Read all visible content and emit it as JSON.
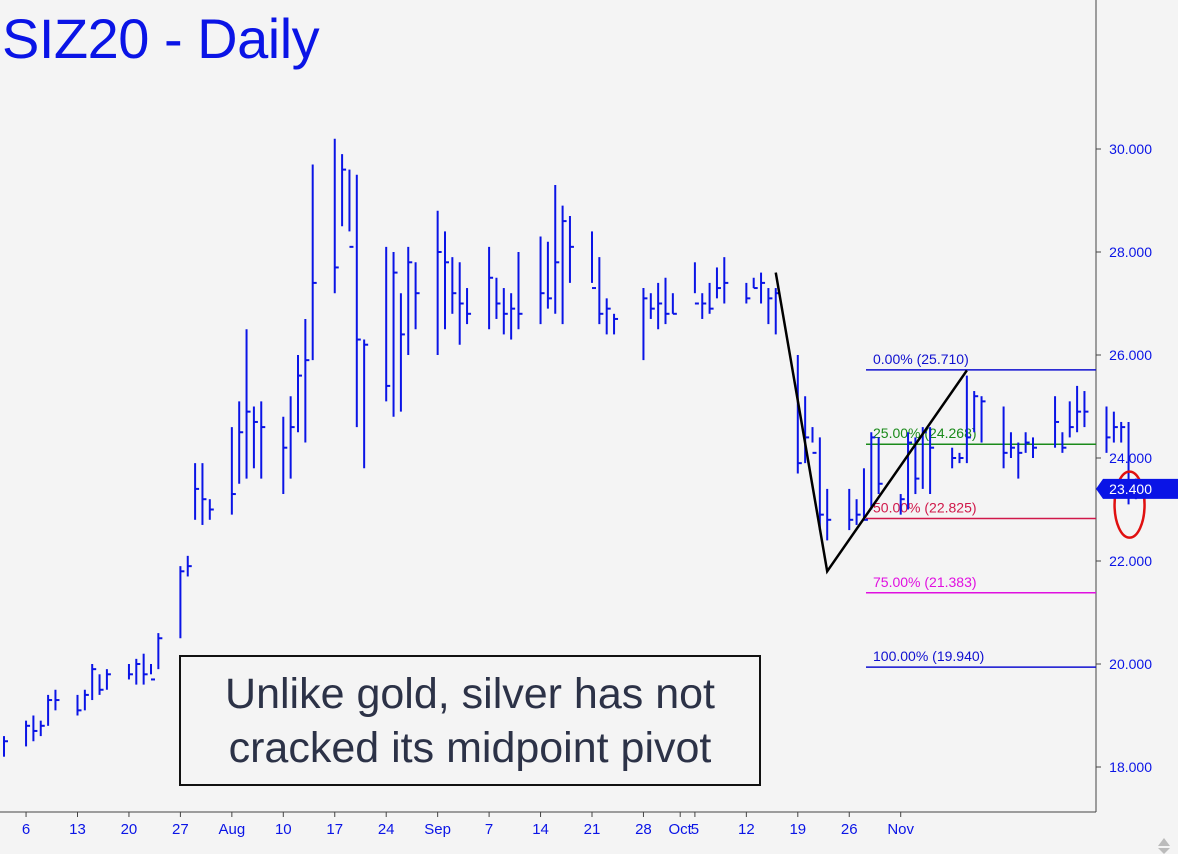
{
  "title": "SIZ20 - Daily",
  "annotation": {
    "line1": "Unlike gold, silver has not",
    "line2": "cracked its midpoint pivot"
  },
  "colors": {
    "bars": "#0a14e6",
    "fib_0": "#1010d0",
    "fib_25": "#1a8a1a",
    "fib_50": "#d0184a",
    "fib_75": "#e010e0",
    "fib_100": "#1010d0",
    "circle": "#e01010",
    "abc": "#000000",
    "last_price_bg": "#0a14e6"
  },
  "chart_data": {
    "type": "ohlc",
    "ylim": [
      17.1,
      32.0
    ],
    "yticks": [
      "18.000",
      "20.000",
      "22.000",
      "24.000",
      "26.000",
      "28.000",
      "30.000"
    ],
    "xticks": [
      {
        "label": "6",
        "day": 6
      },
      {
        "label": "13",
        "day": 13
      },
      {
        "label": "20",
        "day": 20
      },
      {
        "label": "27",
        "day": 27
      },
      {
        "label": "Aug",
        "day": 34
      },
      {
        "label": "10",
        "day": 41
      },
      {
        "label": "17",
        "day": 48
      },
      {
        "label": "24",
        "day": 55
      },
      {
        "label": "Sep",
        "day": 62
      },
      {
        "label": "7",
        "day": 69
      },
      {
        "label": "14",
        "day": 76
      },
      {
        "label": "21",
        "day": 83
      },
      {
        "label": "28",
        "day": 90
      },
      {
        "label": "Oct",
        "day": 95
      },
      {
        "label": "5",
        "day": 97
      },
      {
        "label": "12",
        "day": 104
      },
      {
        "label": "19",
        "day": 111
      },
      {
        "label": "26",
        "day": 118
      },
      {
        "label": "Nov",
        "day": 125
      }
    ],
    "bars": [
      [
        3,
        18.2,
        18.6,
        18.5
      ],
      [
        6,
        18.4,
        18.9,
        18.8
      ],
      [
        7,
        18.5,
        19.0,
        18.7
      ],
      [
        8,
        18.6,
        18.9,
        18.8
      ],
      [
        9,
        18.8,
        19.4,
        19.3
      ],
      [
        10,
        19.1,
        19.5,
        19.3
      ],
      [
        13,
        19.0,
        19.4,
        19.1
      ],
      [
        14,
        19.1,
        19.5,
        19.4
      ],
      [
        15,
        19.3,
        20.0,
        19.9
      ],
      [
        16,
        19.4,
        19.8,
        19.5
      ],
      [
        17,
        19.5,
        19.9,
        19.8
      ],
      [
        20,
        19.7,
        20.0,
        19.8
      ],
      [
        21,
        19.6,
        20.1,
        20.0
      ],
      [
        22,
        19.6,
        20.2,
        19.8
      ],
      [
        23,
        19.8,
        20.0,
        19.7
      ],
      [
        24,
        19.9,
        20.6,
        20.5
      ],
      [
        27,
        20.5,
        21.9,
        21.8
      ],
      [
        28,
        21.7,
        22.1,
        21.9
      ],
      [
        29,
        22.8,
        23.9,
        23.4
      ],
      [
        30,
        22.7,
        23.9,
        23.2
      ],
      [
        31,
        22.8,
        23.2,
        23.0
      ],
      [
        34,
        22.9,
        24.6,
        23.3
      ],
      [
        35,
        23.5,
        25.1,
        24.5
      ],
      [
        36,
        23.6,
        26.5,
        24.9
      ],
      [
        37,
        23.8,
        25.0,
        24.7
      ],
      [
        38,
        23.6,
        25.1,
        24.6
      ],
      [
        41,
        23.3,
        24.8,
        24.2
      ],
      [
        42,
        23.6,
        25.2,
        24.6
      ],
      [
        43,
        24.5,
        26.0,
        25.6
      ],
      [
        44,
        24.3,
        26.7,
        25.9
      ],
      [
        45,
        25.9,
        29.7,
        27.4
      ],
      [
        48,
        27.2,
        30.2,
        27.7
      ],
      [
        49,
        28.5,
        29.9,
        29.6
      ],
      [
        50,
        28.4,
        29.6,
        28.1
      ],
      [
        51,
        24.6,
        29.5,
        26.3
      ],
      [
        52,
        23.8,
        26.3,
        26.2
      ],
      [
        55,
        25.1,
        28.1,
        25.4
      ],
      [
        56,
        24.8,
        28.0,
        27.6
      ],
      [
        57,
        24.9,
        27.2,
        26.4
      ],
      [
        58,
        26.0,
        28.1,
        27.8
      ],
      [
        59,
        26.5,
        27.8,
        27.2
      ],
      [
        62,
        26.0,
        28.8,
        28.0
      ],
      [
        63,
        26.5,
        28.4,
        27.8
      ],
      [
        64,
        26.8,
        27.9,
        27.2
      ],
      [
        65,
        26.2,
        27.8,
        27.0
      ],
      [
        66,
        26.6,
        27.3,
        26.8
      ],
      [
        69,
        26.5,
        28.1,
        27.5
      ],
      [
        70,
        26.7,
        27.5,
        27.0
      ],
      [
        71,
        26.4,
        27.3,
        26.8
      ],
      [
        72,
        26.3,
        27.2,
        26.9
      ],
      [
        73,
        26.5,
        28.0,
        26.8
      ],
      [
        76,
        26.6,
        28.3,
        27.2
      ],
      [
        77,
        26.9,
        28.2,
        27.1
      ],
      [
        78,
        26.8,
        29.3,
        27.8
      ],
      [
        79,
        26.6,
        28.9,
        28.6
      ],
      [
        80,
        27.4,
        28.7,
        28.1
      ],
      [
        83,
        27.4,
        28.4,
        27.3
      ],
      [
        84,
        26.6,
        27.9,
        26.8
      ],
      [
        85,
        26.4,
        27.1,
        26.9
      ],
      [
        86,
        26.4,
        26.8,
        26.7
      ],
      [
        90,
        25.9,
        27.3,
        27.1
      ],
      [
        91,
        26.7,
        27.2,
        26.9
      ],
      [
        92,
        26.5,
        27.4,
        27.0
      ],
      [
        93,
        26.6,
        27.5,
        26.8
      ],
      [
        94,
        26.8,
        27.2,
        26.8
      ],
      [
        97,
        27.2,
        27.8,
        27.0
      ],
      [
        98,
        26.7,
        27.2,
        27.0
      ],
      [
        99,
        26.8,
        27.4,
        26.9
      ],
      [
        100,
        27.1,
        27.7,
        27.3
      ],
      [
        101,
        27.0,
        27.9,
        27.4
      ],
      [
        104,
        27.0,
        27.4,
        27.1
      ],
      [
        105,
        27.3,
        27.5,
        27.3
      ],
      [
        106,
        27.0,
        27.6,
        27.4
      ],
      [
        107,
        26.6,
        27.3,
        27.1
      ],
      [
        108,
        26.4,
        27.3,
        27.2
      ],
      [
        111,
        23.7,
        26.0,
        23.9
      ],
      [
        112,
        23.9,
        25.2,
        24.4
      ],
      [
        113,
        24.3,
        24.6,
        24.1
      ],
      [
        114,
        22.6,
        24.4,
        22.9
      ],
      [
        115,
        22.4,
        23.4,
        22.8
      ],
      [
        118,
        22.6,
        23.4,
        22.8
      ],
      [
        119,
        22.7,
        23.2,
        22.9
      ],
      [
        120,
        22.8,
        23.8,
        22.8
      ],
      [
        121,
        23.0,
        24.5,
        24.4
      ],
      [
        122,
        23.3,
        24.4,
        23.5
      ],
      [
        125,
        22.9,
        23.3,
        23.2
      ],
      [
        126,
        23.0,
        24.5,
        24.3
      ],
      [
        127,
        23.3,
        24.4,
        23.6
      ],
      [
        128,
        23.4,
        24.6,
        24.5
      ],
      [
        129,
        23.3,
        24.6,
        24.2
      ],
      [
        132,
        23.8,
        24.2,
        24.0
      ],
      [
        133,
        23.9,
        24.1,
        24.0
      ],
      [
        134,
        23.9,
        25.6,
        24.4
      ],
      [
        135,
        24.5,
        25.3,
        25.2
      ],
      [
        136,
        24.3,
        25.2,
        25.1
      ],
      [
        139,
        23.8,
        25.0,
        24.1
      ],
      [
        140,
        24.0,
        24.5,
        24.2
      ],
      [
        141,
        23.6,
        24.3,
        24.1
      ],
      [
        142,
        24.1,
        24.5,
        24.3
      ],
      [
        143,
        24.0,
        24.4,
        24.2
      ],
      [
        146,
        24.2,
        25.2,
        24.7
      ],
      [
        147,
        24.1,
        24.5,
        24.2
      ],
      [
        148,
        24.4,
        25.1,
        24.6
      ],
      [
        149,
        24.5,
        25.4,
        24.9
      ],
      [
        150,
        24.6,
        25.3,
        24.9
      ],
      [
        153,
        24.1,
        25.0,
        24.4
      ],
      [
        154,
        24.3,
        24.9,
        24.6
      ],
      [
        155,
        24.3,
        24.7,
        24.6
      ],
      [
        156,
        23.1,
        24.7,
        23.3
      ],
      [
        157,
        23.2,
        23.6,
        23.4
      ]
    ],
    "fib_levels": [
      {
        "label": "0.00% (25.710)",
        "value": 25.71,
        "color": "#1010d0"
      },
      {
        "label": "25.00% (24.268)",
        "value": 24.268,
        "color": "#1a8a1a"
      },
      {
        "label": "50.00% (22.825)",
        "value": 22.825,
        "color": "#d0184a"
      },
      {
        "label": "75.00% (21.383)",
        "value": 21.383,
        "color": "#e010e0"
      },
      {
        "label": "100.00% (19.940)",
        "value": 19.94,
        "color": "#1010d0"
      }
    ],
    "abc_line": [
      [
        108,
        27.6
      ],
      [
        115,
        21.8
      ],
      [
        134,
        25.7
      ]
    ],
    "last_price": {
      "label": "23.400",
      "value": 23.4
    },
    "circle": {
      "day": 156,
      "value": 22.9
    }
  }
}
